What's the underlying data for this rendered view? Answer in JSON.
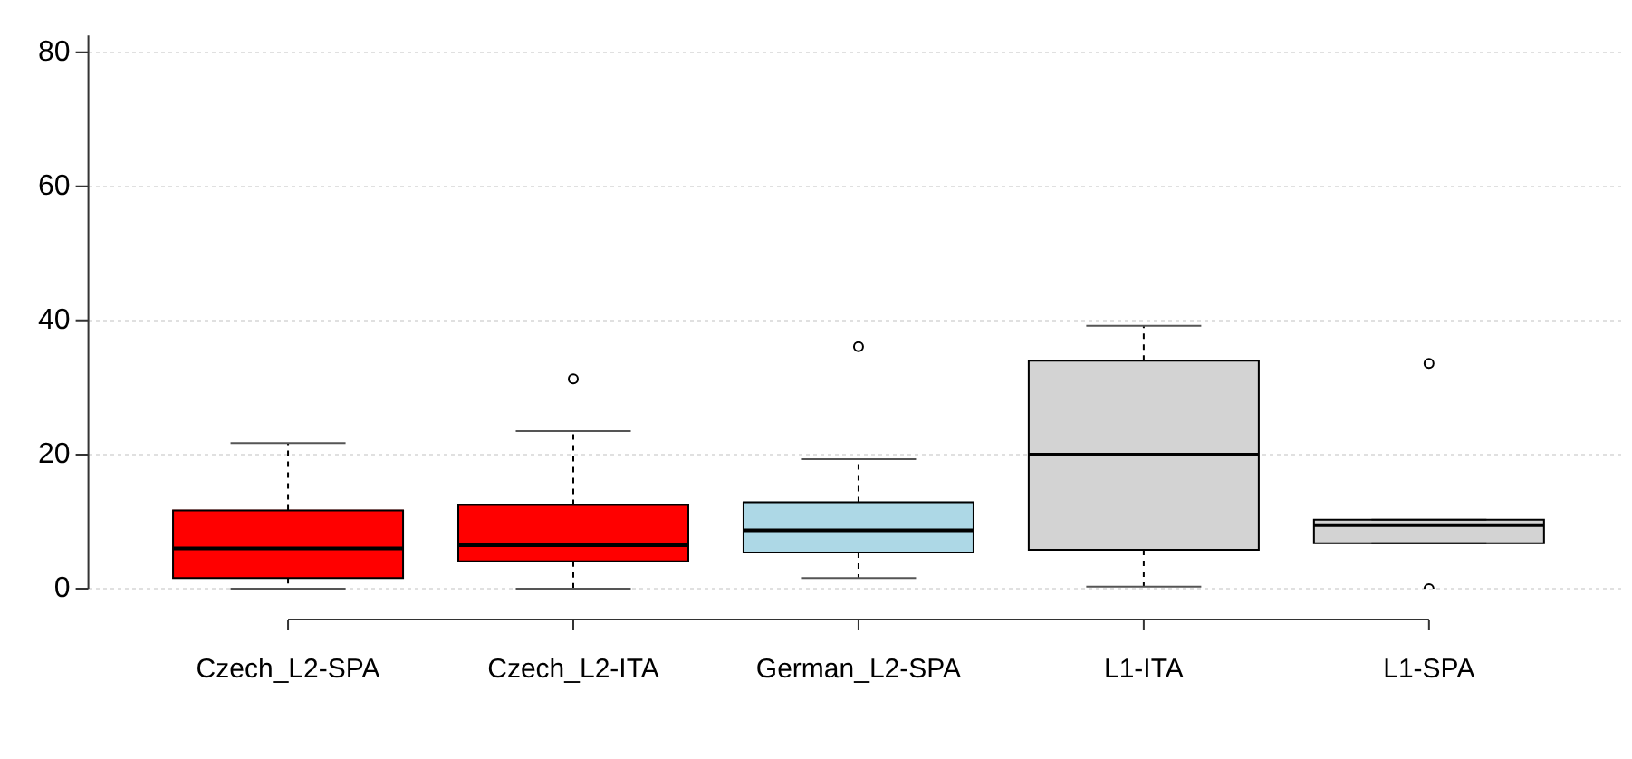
{
  "chart_data": {
    "type": "box",
    "categories": [
      "Czech_L2-SPA",
      "Czech_L2-ITA",
      "German_L2-SPA",
      "L1-ITA",
      "L1-SPA"
    ],
    "colors": [
      "#ff0000",
      "#ff0000",
      "#add8e6",
      "#d3d3d3",
      "#d3d3d3"
    ],
    "boxes": [
      {
        "low": 0,
        "q1": 1.6,
        "median": 6.0,
        "q3": 11.7,
        "high": 21.7
      },
      {
        "low": 0,
        "q1": 4.1,
        "median": 6.5,
        "q3": 12.5,
        "high": 23.5,
        "outliers": [
          31.3
        ]
      },
      {
        "low": 1.6,
        "q1": 5.4,
        "median": 8.7,
        "q3": 12.9,
        "high": 19.3,
        "outliers": [
          36.1
        ]
      },
      {
        "low": 0.3,
        "q1": 5.8,
        "median": 20.0,
        "q3": 34.0,
        "high": 39.2
      },
      {
        "low": 6.8,
        "q1": 6.8,
        "median": 9.5,
        "q3": 10.3,
        "high": 10.3,
        "outliers": [
          33.6,
          0
        ]
      }
    ],
    "ylim": [
      0,
      82.5
    ],
    "yticks": [
      0,
      20,
      40,
      60,
      80
    ],
    "grid": "y"
  }
}
